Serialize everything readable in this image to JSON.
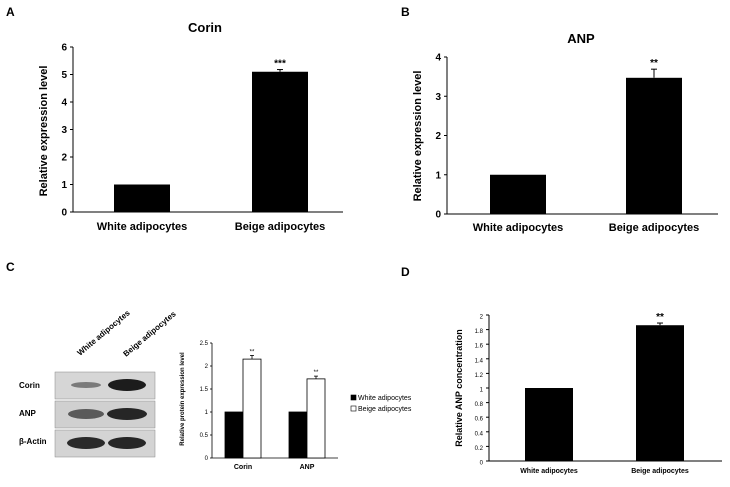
{
  "panels": {
    "A": {
      "letter": "A",
      "chart_data": {
        "type": "bar",
        "title": "Corin",
        "ylabel": "Relative expression level",
        "xlabel": "",
        "categories": [
          "White adipocytes",
          "Beige adipocytes"
        ],
        "values": [
          1.0,
          5.1
        ],
        "errors": [
          0,
          0.08
        ],
        "significance": [
          "",
          "***"
        ],
        "ylim": [
          0,
          6
        ],
        "yticks": [
          "0",
          "1",
          "2",
          "3",
          "4",
          "5",
          "6"
        ],
        "grid": false
      }
    },
    "B": {
      "letter": "B",
      "chart_data": {
        "type": "bar",
        "title": "ANP",
        "ylabel": "Relative expression level",
        "xlabel": "",
        "categories": [
          "White adipocytes",
          "Beige adipocytes"
        ],
        "values": [
          1.0,
          3.47
        ],
        "errors": [
          0,
          0.22
        ],
        "significance": [
          "",
          "**"
        ],
        "ylim": [
          0,
          4
        ],
        "yticks": [
          "0",
          "1",
          "2",
          "3",
          "4"
        ],
        "grid": false
      }
    },
    "C": {
      "letter": "C",
      "blot": {
        "lanes": [
          "White adipocytes",
          "Beige adipocytes"
        ],
        "rows": [
          "Corin",
          "ANP",
          "β-Actin"
        ]
      },
      "chart_data": {
        "type": "bar",
        "ylabel": "Relative protein expression level",
        "xlabel": "",
        "categories": [
          "Corin",
          "ANP"
        ],
        "series": [
          {
            "name": "White adipocytes",
            "values": [
              1.0,
              1.0
            ],
            "color": "#000000"
          },
          {
            "name": "Beige adipocytes",
            "values": [
              2.15,
              1.72
            ],
            "color": "#ffffff"
          }
        ],
        "errors": [
          [
            0,
            0
          ],
          [
            0.08,
            0.06
          ]
        ],
        "significance": [
          "**",
          "**"
        ],
        "ylim": [
          0,
          2.5
        ],
        "yticks": [
          "0",
          "0.5",
          "1",
          "1.5",
          "2",
          "2.5"
        ],
        "legend": "right",
        "grid": false
      }
    },
    "D": {
      "letter": "D",
      "chart_data": {
        "type": "bar",
        "ylabel": "Relative ANP concentration",
        "xlabel": "",
        "categories": [
          "White adipocytes",
          "Beige adipocytes"
        ],
        "values": [
          1.0,
          1.86
        ],
        "errors": [
          0,
          0.03
        ],
        "significance": [
          "",
          "**"
        ],
        "ylim": [
          0,
          2
        ],
        "yticks": [
          "0",
          "0.2",
          "0.4",
          "0.6",
          "0.8",
          "1",
          "1.2",
          "1.4",
          "1.6",
          "1.8",
          "2"
        ],
        "grid": false
      }
    }
  }
}
